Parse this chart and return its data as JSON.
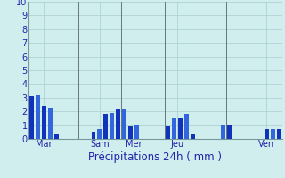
{
  "bar_values": [
    3.1,
    3.2,
    2.4,
    2.3,
    0.3,
    0.0,
    0.0,
    0.0,
    0.0,
    0.0,
    0.5,
    0.7,
    1.8,
    1.9,
    2.2,
    2.2,
    0.9,
    1.0,
    0.0,
    0.0,
    0.0,
    0.0,
    0.9,
    1.5,
    1.5,
    1.8,
    0.4,
    0.0,
    0.0,
    0.0,
    0.0,
    1.0,
    1.0,
    0.0,
    0.0,
    0.0,
    0.0,
    0.0,
    0.7,
    0.7,
    0.7
  ],
  "bar_color_dark": "#1133bb",
  "bar_color_light": "#3366dd",
  "background_color": "#d0eeee",
  "grid_color": "#aacccc",
  "text_color": "#2222aa",
  "xlabel": "Précipitations 24h ( mm )",
  "ylim": [
    0,
    10
  ],
  "yticks": [
    0,
    1,
    2,
    3,
    4,
    5,
    6,
    7,
    8,
    9,
    10
  ],
  "day_labels": [
    "Mar",
    "Sam",
    "Mer",
    "Jeu",
    "Ven"
  ],
  "day_tick_positions": [
    2.0,
    11.0,
    16.5,
    23.5,
    38.0
  ],
  "vline_positions": [
    7.5,
    14.5,
    21.5,
    31.5
  ],
  "xlabel_fontsize": 8.5,
  "tick_fontsize": 7,
  "bar_width": 0.7
}
